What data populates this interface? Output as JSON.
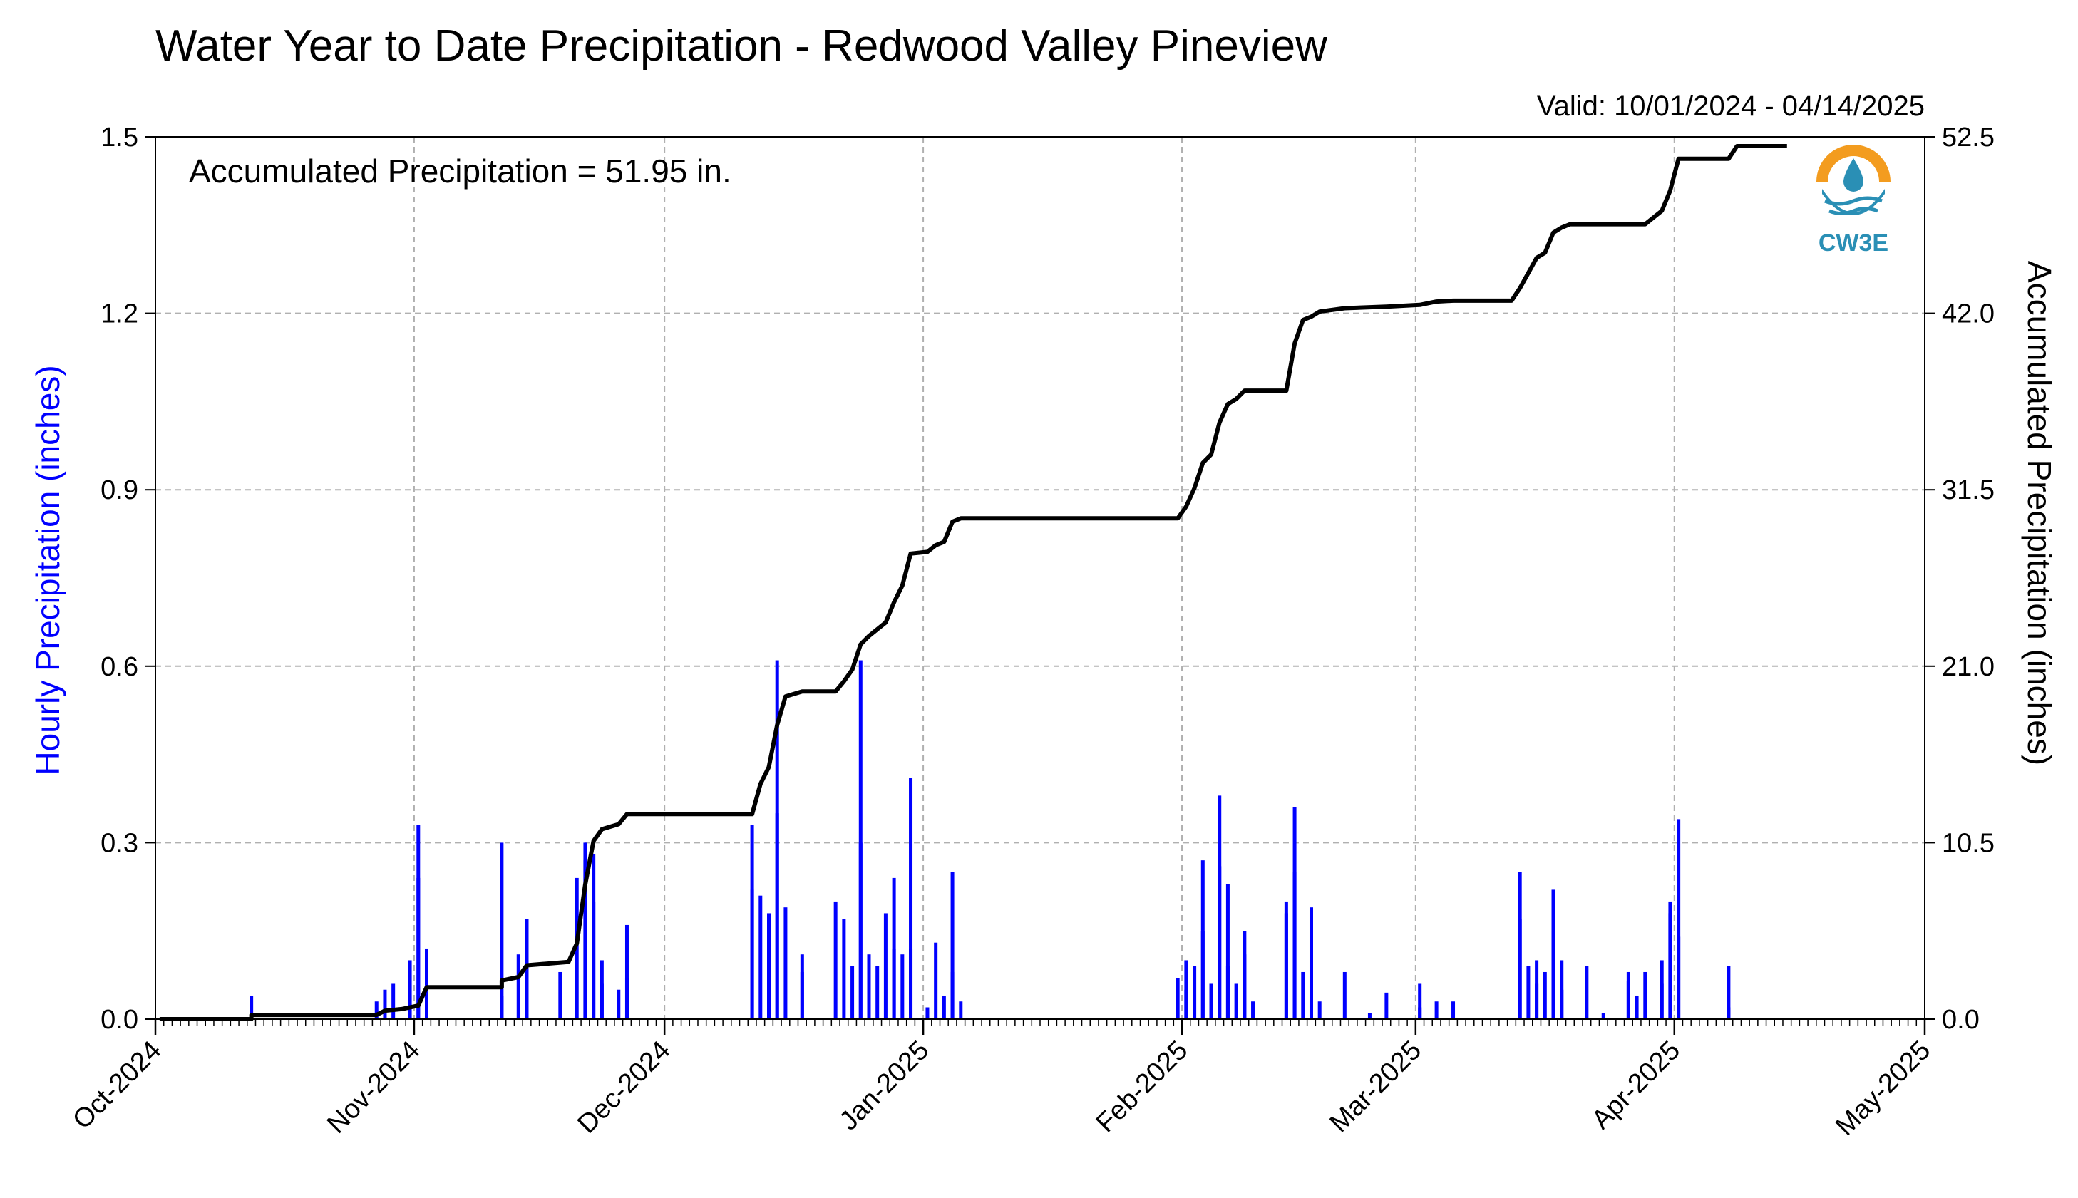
{
  "chart_data": {
    "type": "bar",
    "title": "Water Year to Date Precipitation - Redwood Valley Pineview",
    "subtitle": "Valid: 10/01/2024 - 04/14/2025",
    "annotation": "Accumulated Precipitation = 51.95 in.",
    "logo_text": "CW3E",
    "ylabel_left": "Hourly Precipitation (inches)",
    "ylabel_right": "Accumulated Precipitation (inches)",
    "xlim": [
      "2024-10-01",
      "2025-05-01"
    ],
    "ylim_left": [
      0,
      1.5
    ],
    "ylim_right": [
      0,
      52.5
    ],
    "grid": true,
    "x_ticks": [
      "2024-10-01",
      "2024-11-01",
      "2024-12-01",
      "2025-01-01",
      "2025-02-01",
      "2025-03-01",
      "2025-04-01",
      "2025-05-01"
    ],
    "x_tick_labels": [
      "Oct-2024",
      "Nov-2024",
      "Dec-2024",
      "Jan-2025",
      "Feb-2025",
      "Mar-2025",
      "Apr-2025",
      "May-2025"
    ],
    "y_left_ticks": [
      "0.0",
      "0.3",
      "0.6",
      "0.9",
      "1.2",
      "1.5"
    ],
    "y_right_ticks": [
      "0.0",
      "10.5",
      "21.0",
      "31.5",
      "42.0",
      "52.5"
    ],
    "colors": {
      "hourly": "#0000ff",
      "accumulated": "#000000",
      "grid": "#b0b0b0",
      "left_label": "#0000ff",
      "logo_orange": "#f39c1f",
      "logo_blue": "#2a8fb5"
    },
    "series": [
      {
        "name": "Hourly Precipitation (inches)",
        "type": "bar",
        "points": [
          [
            "2024-10-12",
            0.04
          ],
          [
            "2024-10-27",
            0.03
          ],
          [
            "2024-10-28",
            0.05
          ],
          [
            "2024-10-29",
            0.06
          ],
          [
            "2024-10-31",
            0.1
          ],
          [
            "2024-11-01",
            0.33
          ],
          [
            "2024-11-01",
            0.24
          ],
          [
            "2024-11-02",
            0.12
          ],
          [
            "2024-11-11",
            0.3
          ],
          [
            "2024-11-11",
            0.04
          ],
          [
            "2024-11-13",
            0.11
          ],
          [
            "2024-11-14",
            0.17
          ],
          [
            "2024-11-18",
            0.08
          ],
          [
            "2024-11-20",
            0.24
          ],
          [
            "2024-11-21",
            0.3
          ],
          [
            "2024-11-21",
            0.27
          ],
          [
            "2024-11-22",
            0.28
          ],
          [
            "2024-11-22",
            0.2
          ],
          [
            "2024-11-23",
            0.1
          ],
          [
            "2024-11-23",
            0.06
          ],
          [
            "2024-11-25",
            0.05
          ],
          [
            "2024-11-26",
            0.16
          ],
          [
            "2024-11-26",
            0.07
          ],
          [
            "2024-12-11",
            0.22
          ],
          [
            "2024-12-11",
            0.33
          ],
          [
            "2024-12-12",
            0.21
          ],
          [
            "2024-12-13",
            0.18
          ],
          [
            "2024-12-14",
            0.35
          ],
          [
            "2024-12-14",
            0.61
          ],
          [
            "2024-12-15",
            0.19
          ],
          [
            "2024-12-17",
            0.11
          ],
          [
            "2024-12-17",
            0.08
          ],
          [
            "2024-12-21",
            0.2
          ],
          [
            "2024-12-22",
            0.17
          ],
          [
            "2024-12-23",
            0.09
          ],
          [
            "2024-12-24",
            0.61
          ],
          [
            "2024-12-24",
            0.3
          ],
          [
            "2024-12-25",
            0.11
          ],
          [
            "2024-12-26",
            0.09
          ],
          [
            "2024-12-27",
            0.18
          ],
          [
            "2024-12-28",
            0.12
          ],
          [
            "2024-12-28",
            0.24
          ],
          [
            "2024-12-29",
            0.11
          ],
          [
            "2024-12-30",
            0.41
          ],
          [
            "2024-12-30",
            0.12
          ],
          [
            "2025-01-01",
            0.02
          ],
          [
            "2025-01-02",
            0.13
          ],
          [
            "2025-01-03",
            0.04
          ],
          [
            "2025-01-04",
            0.25
          ],
          [
            "2025-01-04",
            0.08
          ],
          [
            "2025-01-05",
            0.03
          ],
          [
            "2025-01-31",
            0.07
          ],
          [
            "2025-02-01",
            0.1
          ],
          [
            "2025-02-01",
            0.05
          ],
          [
            "2025-02-02",
            0.09
          ],
          [
            "2025-02-03",
            0.27
          ],
          [
            "2025-02-03",
            0.15
          ],
          [
            "2025-02-04",
            0.06
          ],
          [
            "2025-02-05",
            0.38
          ],
          [
            "2025-02-05",
            0.26
          ],
          [
            "2025-02-06",
            0.23
          ],
          [
            "2025-02-06",
            0.09
          ],
          [
            "2025-02-07",
            0.06
          ],
          [
            "2025-02-08",
            0.15
          ],
          [
            "2025-02-08",
            0.11
          ],
          [
            "2025-02-09",
            0.03
          ],
          [
            "2025-02-13",
            0.18
          ],
          [
            "2025-02-13",
            0.2
          ],
          [
            "2025-02-14",
            0.36
          ],
          [
            "2025-02-14",
            0.25
          ],
          [
            "2025-02-15",
            0.08
          ],
          [
            "2025-02-16",
            0.19
          ],
          [
            "2025-02-16",
            0.03
          ],
          [
            "2025-02-17",
            0.03
          ],
          [
            "2025-02-20",
            0.08
          ],
          [
            "2025-02-23",
            0.01
          ],
          [
            "2025-02-25",
            0.045
          ],
          [
            "2025-03-01",
            0.02
          ],
          [
            "2025-03-01",
            0.06
          ],
          [
            "2025-03-03",
            0.03
          ],
          [
            "2025-03-05",
            0.03
          ],
          [
            "2025-03-13",
            0.25
          ],
          [
            "2025-03-13",
            0.17
          ],
          [
            "2025-03-14",
            0.09
          ],
          [
            "2025-03-15",
            0.1
          ],
          [
            "2025-03-15",
            0.06
          ],
          [
            "2025-03-16",
            0.08
          ],
          [
            "2025-03-17",
            0.22
          ],
          [
            "2025-03-17",
            0.15
          ],
          [
            "2025-03-18",
            0.1
          ],
          [
            "2025-03-18",
            0.05
          ],
          [
            "2025-03-21",
            0.09
          ],
          [
            "2025-03-23",
            0.01
          ],
          [
            "2025-03-26",
            0.065
          ],
          [
            "2025-03-26",
            0.08
          ],
          [
            "2025-03-27",
            0.04
          ],
          [
            "2025-03-28",
            0.08
          ],
          [
            "2025-03-30",
            0.06
          ],
          [
            "2025-03-30",
            0.1
          ],
          [
            "2025-03-31",
            0.18
          ],
          [
            "2025-03-31",
            0.2
          ],
          [
            "2025-04-01",
            0.34
          ],
          [
            "2025-04-01",
            0.14
          ],
          [
            "2025-04-07",
            0.09
          ],
          [
            "2025-04-07",
            0.02
          ]
        ]
      },
      {
        "name": "Accumulated Precipitation (inches)",
        "type": "line",
        "points": [
          [
            "2024-10-01",
            0
          ],
          [
            "2024-10-12",
            0
          ],
          [
            "2024-10-12",
            0.25
          ],
          [
            "2024-10-27",
            0.25
          ],
          [
            "2024-10-28",
            0.5
          ],
          [
            "2024-10-30",
            0.6
          ],
          [
            "2024-11-01",
            0.8
          ],
          [
            "2024-11-02",
            1.9
          ],
          [
            "2024-11-11",
            1.9
          ],
          [
            "2024-11-11",
            2.3
          ],
          [
            "2024-11-13",
            2.5
          ],
          [
            "2024-11-14",
            3.2
          ],
          [
            "2024-11-19",
            3.4
          ],
          [
            "2024-11-20",
            4.5
          ],
          [
            "2024-11-21",
            8.0
          ],
          [
            "2024-11-22",
            10.6
          ],
          [
            "2024-11-23",
            11.3
          ],
          [
            "2024-11-25",
            11.6
          ],
          [
            "2024-11-26",
            12.2
          ],
          [
            "2024-12-11",
            12.2
          ],
          [
            "2024-12-12",
            14.0
          ],
          [
            "2024-12-13",
            15.0
          ],
          [
            "2024-12-14",
            17.5
          ],
          [
            "2024-12-15",
            19.2
          ],
          [
            "2024-12-17",
            19.5
          ],
          [
            "2024-12-21",
            19.5
          ],
          [
            "2024-12-22",
            20.1
          ],
          [
            "2024-12-23",
            20.8
          ],
          [
            "2024-12-24",
            22.3
          ],
          [
            "2024-12-25",
            22.8
          ],
          [
            "2024-12-27",
            23.6
          ],
          [
            "2024-12-28",
            24.8
          ],
          [
            "2024-12-29",
            25.8
          ],
          [
            "2024-12-30",
            27.7
          ],
          [
            "2025-01-01",
            27.8
          ],
          [
            "2025-01-02",
            28.2
          ],
          [
            "2025-01-03",
            28.4
          ],
          [
            "2025-01-04",
            29.6
          ],
          [
            "2025-01-05",
            29.8
          ],
          [
            "2025-01-31",
            29.8
          ],
          [
            "2025-02-01",
            30.5
          ],
          [
            "2025-02-02",
            31.6
          ],
          [
            "2025-02-03",
            33.1
          ],
          [
            "2025-02-04",
            33.6
          ],
          [
            "2025-02-05",
            35.5
          ],
          [
            "2025-02-06",
            36.6
          ],
          [
            "2025-02-07",
            36.9
          ],
          [
            "2025-02-08",
            37.4
          ],
          [
            "2025-02-13",
            37.4
          ],
          [
            "2025-02-14",
            40.2
          ],
          [
            "2025-02-15",
            41.6
          ],
          [
            "2025-02-16",
            41.8
          ],
          [
            "2025-02-17",
            42.1
          ],
          [
            "2025-02-20",
            42.3
          ],
          [
            "2025-02-25",
            42.4
          ],
          [
            "2025-03-01",
            42.5
          ],
          [
            "2025-03-03",
            42.7
          ],
          [
            "2025-03-05",
            42.75
          ],
          [
            "2025-03-12",
            42.75
          ],
          [
            "2025-03-13",
            43.5
          ],
          [
            "2025-03-14",
            44.4
          ],
          [
            "2025-03-15",
            45.3
          ],
          [
            "2025-03-16",
            45.6
          ],
          [
            "2025-03-17",
            46.8
          ],
          [
            "2025-03-18",
            47.1
          ],
          [
            "2025-03-19",
            47.3
          ],
          [
            "2025-03-28",
            47.3
          ],
          [
            "2025-03-29",
            47.7
          ],
          [
            "2025-03-30",
            48.1
          ],
          [
            "2025-03-31",
            49.3
          ],
          [
            "2025-04-01",
            51.2
          ],
          [
            "2025-04-07",
            51.2
          ],
          [
            "2025-04-08",
            51.95
          ],
          [
            "2025-04-14",
            51.95
          ]
        ]
      }
    ]
  }
}
